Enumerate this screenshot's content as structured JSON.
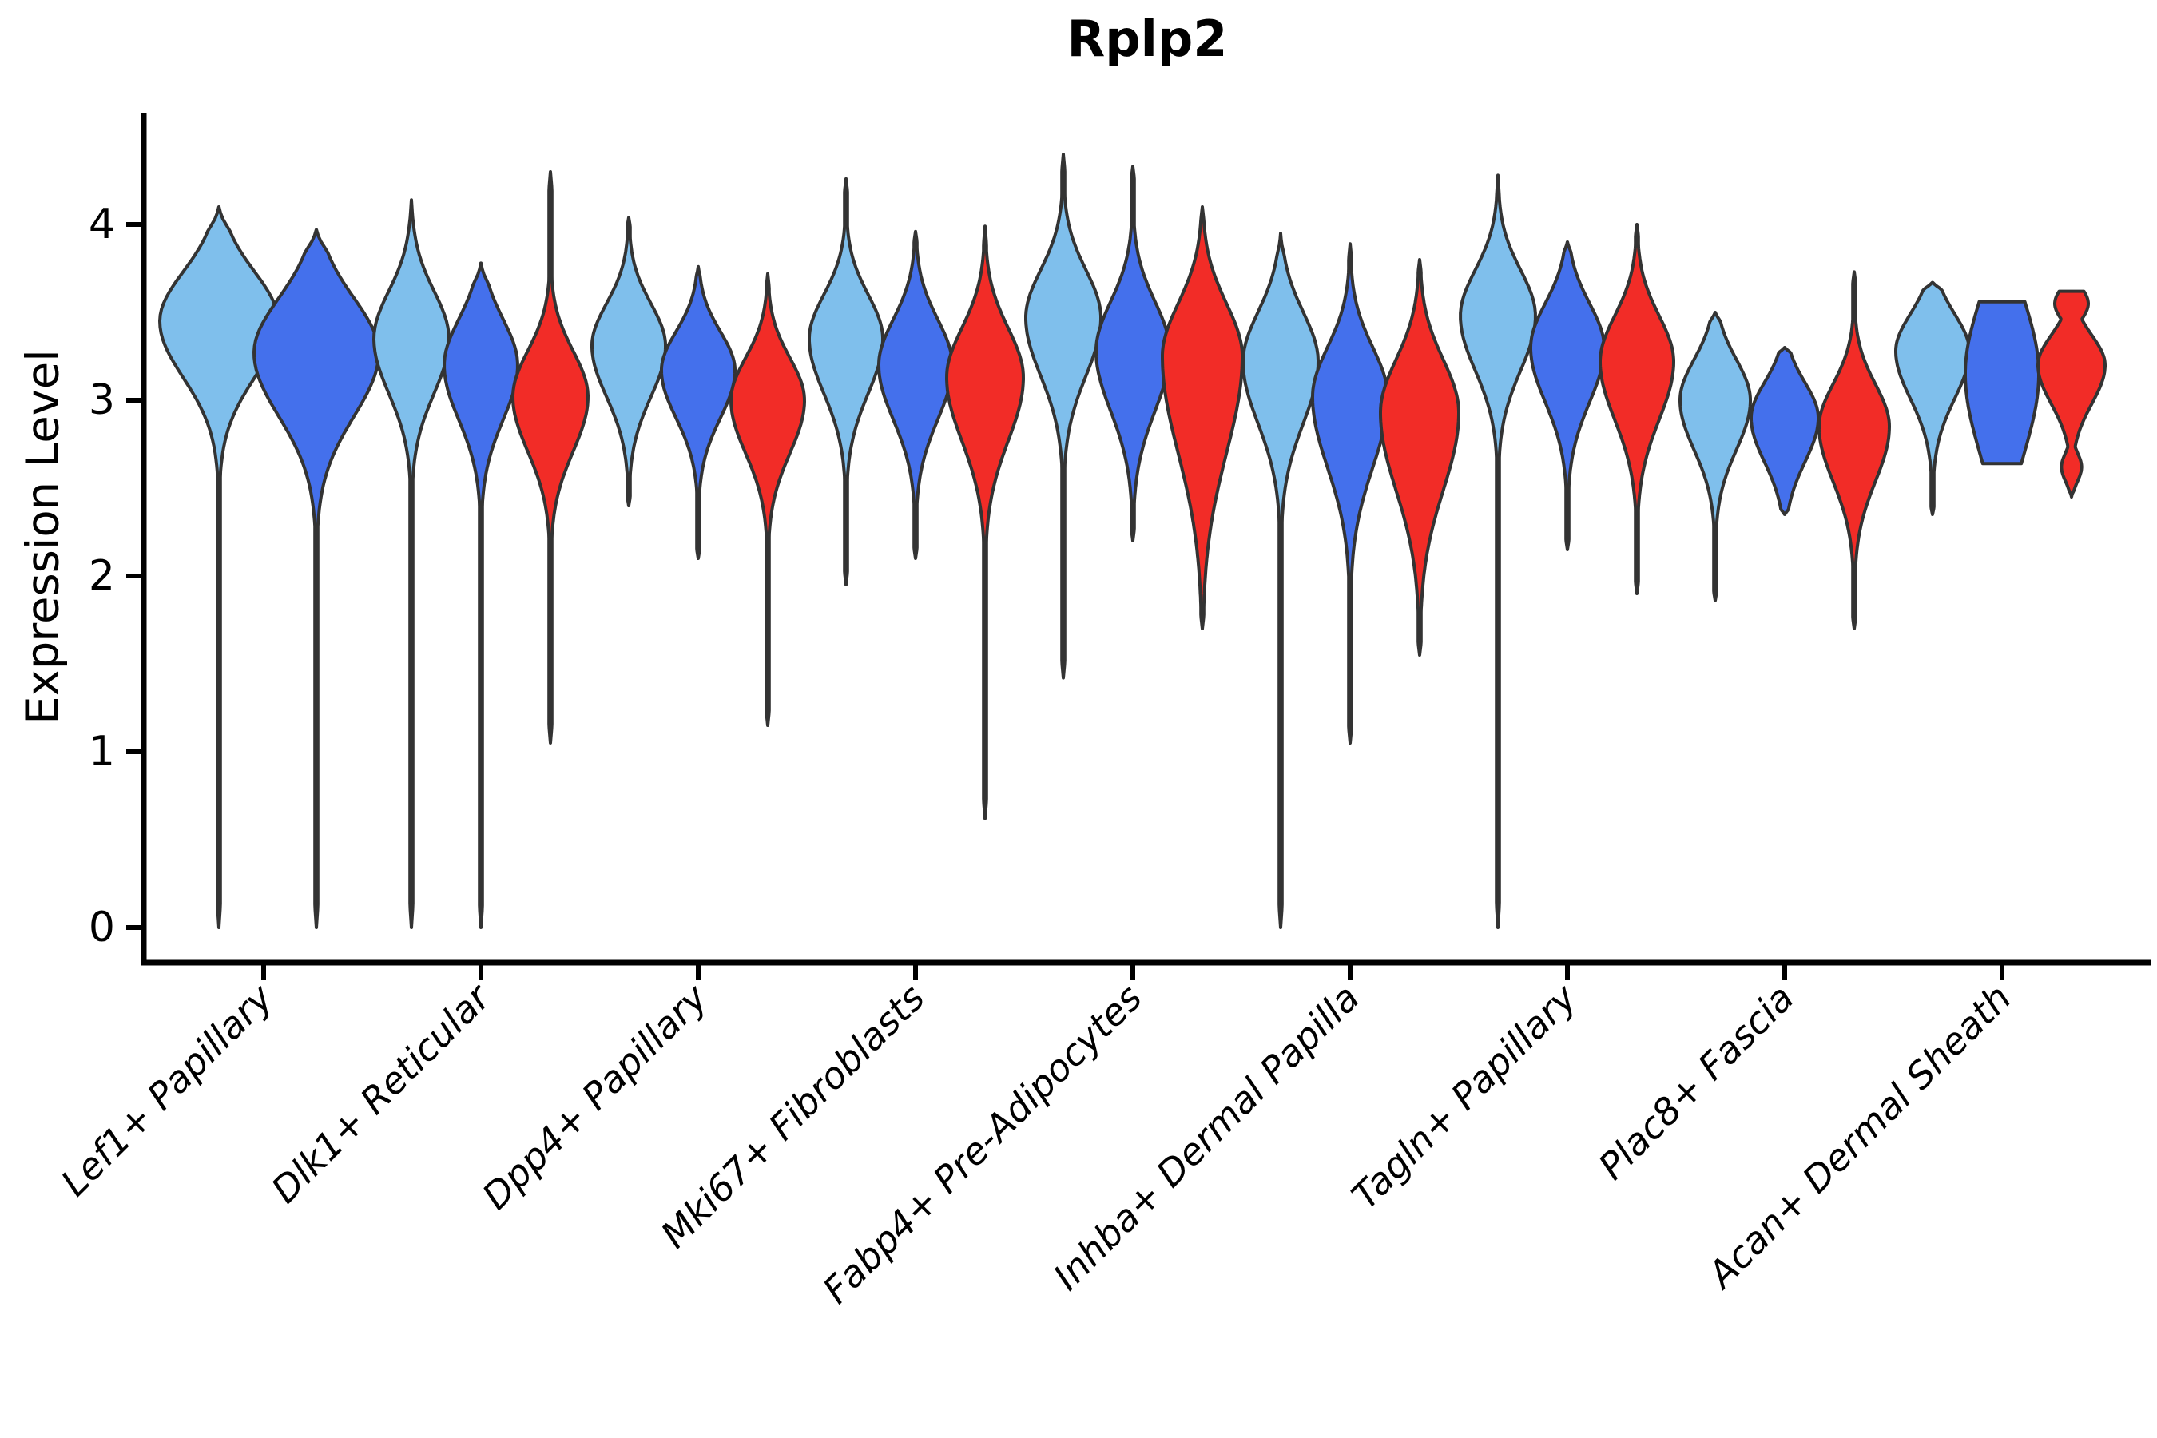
{
  "title": "Rplp2",
  "y_axis": {
    "label": "Expression Level",
    "tick_labels": [
      "0",
      "1",
      "2",
      "3",
      "4"
    ]
  },
  "colors": {
    "light_blue": "#7FBFEC",
    "dark_blue": "#4470EC",
    "red": "#F22C27",
    "outline": "#333333",
    "axis": "#000000"
  },
  "chart_data": {
    "type": "violin",
    "title": "Rplp2",
    "xlabel": "",
    "ylabel": "Expression Level",
    "ylim": [
      0,
      4.65
    ],
    "yticks": [
      0,
      1,
      2,
      3,
      4
    ],
    "grid": false,
    "legend_position": "none",
    "categories": [
      "Lef1+ Papillary",
      "Dlk1+ Reticular",
      "Dpp4+ Papillary",
      "Mki67+ Fibroblasts",
      "Fabp4+ Pre-Adipocytes",
      "Inhba+ Dermal Papilla",
      "Tagln+ Papillary",
      "Plac8+ Fascia",
      "Acan+ Dermal Sheath"
    ],
    "groups": [
      {
        "category": "Lef1+ Papillary",
        "violins": [
          {
            "color": "light_blue",
            "peak": 3.45,
            "spread_above": 0.28,
            "spread_below": 0.32,
            "max_value": 4.1,
            "min_value": 0.0,
            "width": 74
          },
          {
            "color": "dark_blue",
            "peak": 3.27,
            "spread_above": 0.31,
            "spread_below": 0.36,
            "max_value": 3.97,
            "min_value": 0.0,
            "width": 78
          }
        ]
      },
      {
        "category": "Dlk1+ Reticular",
        "violins": [
          {
            "color": "light_blue",
            "peak": 3.35,
            "spread_above": 0.27,
            "spread_below": 0.31,
            "max_value": 4.14,
            "min_value": 0.0,
            "width": 47
          },
          {
            "color": "dark_blue",
            "peak": 3.2,
            "spread_above": 0.26,
            "spread_below": 0.31,
            "max_value": 3.78,
            "min_value": 0.0,
            "width": 46
          },
          {
            "color": "red",
            "peak": 3.02,
            "spread_above": 0.26,
            "spread_below": 0.31,
            "max_value": 4.3,
            "min_value": 1.05,
            "width": 47
          }
        ]
      },
      {
        "category": "Dpp4+ Papillary",
        "violins": [
          {
            "color": "light_blue",
            "peak": 3.31,
            "spread_above": 0.24,
            "spread_below": 0.29,
            "max_value": 4.04,
            "min_value": 2.4,
            "width": 46
          },
          {
            "color": "dark_blue",
            "peak": 3.17,
            "spread_above": 0.22,
            "spread_below": 0.27,
            "max_value": 3.76,
            "min_value": 2.1,
            "width": 46
          },
          {
            "color": "red",
            "peak": 3.0,
            "spread_above": 0.24,
            "spread_below": 0.3,
            "max_value": 3.72,
            "min_value": 1.15,
            "width": 46
          }
        ]
      },
      {
        "category": "Mki67+ Fibroblasts",
        "violins": [
          {
            "color": "light_blue",
            "peak": 3.35,
            "spread_above": 0.25,
            "spread_below": 0.31,
            "max_value": 4.26,
            "min_value": 1.95,
            "width": 46
          },
          {
            "color": "dark_blue",
            "peak": 3.2,
            "spread_above": 0.26,
            "spread_below": 0.31,
            "max_value": 3.96,
            "min_value": 2.1,
            "width": 46
          },
          {
            "color": "red",
            "peak": 3.13,
            "spread_above": 0.28,
            "spread_below": 0.36,
            "max_value": 3.99,
            "min_value": 0.62,
            "width": 48
          }
        ]
      },
      {
        "category": "Fabp4+ Pre-Adipocytes",
        "violins": [
          {
            "color": "light_blue",
            "peak": 3.47,
            "spread_above": 0.27,
            "spread_below": 0.33,
            "max_value": 4.4,
            "min_value": 1.42,
            "width": 47
          },
          {
            "color": "dark_blue",
            "peak": 3.28,
            "spread_above": 0.28,
            "spread_below": 0.34,
            "max_value": 4.33,
            "min_value": 2.2,
            "width": 46
          },
          {
            "color": "red",
            "peak": 3.25,
            "spread_above": 0.3,
            "spread_below": 0.55,
            "max_value": 4.1,
            "min_value": 1.7,
            "width": 50
          }
        ]
      },
      {
        "category": "Inhba+ Dermal Papilla",
        "violins": [
          {
            "color": "light_blue",
            "peak": 3.22,
            "spread_above": 0.28,
            "spread_below": 0.35,
            "max_value": 3.95,
            "min_value": 0.0,
            "width": 47
          },
          {
            "color": "dark_blue",
            "peak": 3.02,
            "spread_above": 0.28,
            "spread_below": 0.4,
            "max_value": 3.89,
            "min_value": 1.05,
            "width": 47
          },
          {
            "color": "red",
            "peak": 2.93,
            "spread_above": 0.3,
            "spread_below": 0.44,
            "max_value": 3.8,
            "min_value": 1.55,
            "width": 49
          }
        ]
      },
      {
        "category": "Tagln+ Papillary",
        "violins": [
          {
            "color": "light_blue",
            "peak": 3.48,
            "spread_above": 0.26,
            "spread_below": 0.31,
            "max_value": 4.28,
            "min_value": 0.0,
            "width": 47
          },
          {
            "color": "dark_blue",
            "peak": 3.3,
            "spread_above": 0.25,
            "spread_below": 0.31,
            "max_value": 3.9,
            "min_value": 2.15,
            "width": 46
          },
          {
            "color": "red",
            "peak": 3.22,
            "spread_above": 0.26,
            "spread_below": 0.33,
            "max_value": 4.0,
            "min_value": 1.9,
            "width": 46
          }
        ]
      },
      {
        "category": "Plac8+ Fascia",
        "violins": [
          {
            "color": "light_blue",
            "peak": 3.0,
            "spread_above": 0.23,
            "spread_below": 0.28,
            "max_value": 3.5,
            "min_value": 1.86,
            "width": 44
          },
          {
            "color": "dark_blue",
            "peak": 2.9,
            "spread_above": 0.2,
            "spread_below": 0.25,
            "max_value": 3.3,
            "min_value": 2.35,
            "width": 42
          },
          {
            "color": "red",
            "peak": 2.85,
            "spread_above": 0.24,
            "spread_below": 0.31,
            "max_value": 3.73,
            "min_value": 1.7,
            "width": 44
          }
        ]
      },
      {
        "category": "Acan+ Dermal Sheath",
        "violins": [
          {
            "color": "light_blue",
            "peak": 3.28,
            "spread_above": 0.21,
            "spread_below": 0.27,
            "max_value": 3.67,
            "min_value": 2.35,
            "width": 46
          },
          {
            "color": "dark_blue",
            "peak": 3.15,
            "spread_above": 0.42,
            "spread_below": 0.45,
            "max_value": 3.56,
            "min_value": 2.64,
            "width": 46,
            "flat_top": true,
            "flat_bottom": true
          },
          {
            "color": "red",
            "peak": 3.2,
            "spread_above": 0.17,
            "spread_below": 0.22,
            "max_value": 3.62,
            "min_value": 2.45,
            "width": 42,
            "flat_top": true,
            "bumps": [
              {
                "at": 3.55,
                "spread": 0.09,
                "amp": 0.5
              },
              {
                "at": 2.62,
                "spread": 0.08,
                "amp": 0.3
              }
            ]
          }
        ]
      }
    ]
  }
}
